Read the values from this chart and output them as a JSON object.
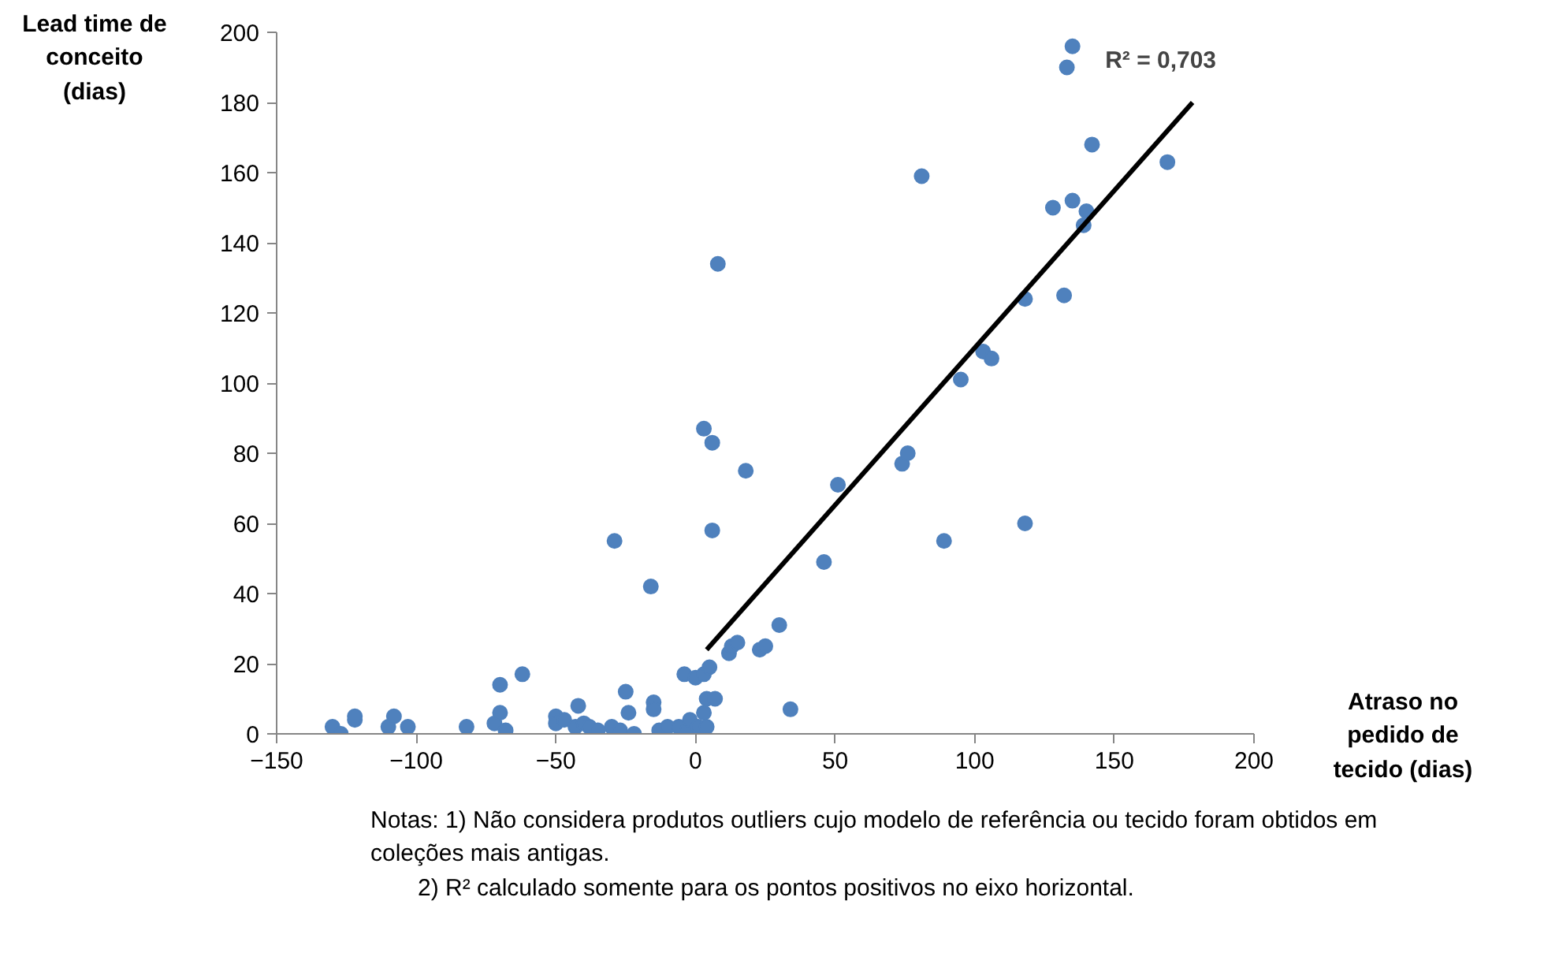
{
  "chart_data": {
    "type": "scatter",
    "xlabel": "Atraso no pedido de tecido (dias)",
    "ylabel": "Lead time de conceito (dias)",
    "xlim": [
      -150,
      200
    ],
    "xticks": [
      -150,
      -100,
      -50,
      0,
      50,
      100,
      150,
      200
    ],
    "ylim": [
      0,
      200
    ],
    "yticks": [
      0,
      20,
      40,
      60,
      80,
      100,
      120,
      140,
      160,
      180,
      200
    ],
    "grid": false,
    "series": [
      {
        "color": "#4f81bd",
        "marker": "circle",
        "x": [
          -130,
          -127,
          -122,
          -122,
          -110,
          -108,
          -103,
          -82,
          -72,
          -70,
          -70,
          -68,
          -62,
          -50,
          -50,
          -47,
          -43,
          -42,
          -40,
          -38,
          -35,
          -30,
          -29,
          -27,
          -25,
          -24,
          -22,
          -16,
          -15,
          -15,
          -13,
          -10,
          -6,
          -4,
          -3,
          -2,
          0,
          1,
          3,
          3,
          3,
          4,
          4,
          5,
          6,
          6,
          7,
          8,
          12,
          13,
          15,
          18,
          23,
          25,
          30,
          34,
          46,
          51,
          74,
          76,
          81,
          89,
          95,
          103,
          106,
          118,
          118,
          128,
          132,
          133,
          135,
          135,
          139,
          140,
          142,
          169
        ],
        "values": [
          2,
          0,
          4,
          5,
          2,
          5,
          2,
          2,
          3,
          6,
          14,
          1,
          17,
          5,
          3,
          4,
          2,
          8,
          3,
          2,
          1,
          2,
          55,
          1,
          12,
          6,
          0,
          42,
          9,
          7,
          1,
          2,
          2,
          17,
          1,
          4,
          16,
          2,
          17,
          87,
          6,
          10,
          2,
          19,
          58,
          83,
          10,
          134,
          23,
          25,
          26,
          75,
          24,
          25,
          31,
          7,
          49,
          71,
          77,
          80,
          159,
          55,
          101,
          109,
          107,
          124,
          60,
          150,
          125,
          190,
          196,
          152,
          145,
          149,
          168,
          163
        ]
      },
      {
        "type": "line",
        "color": "#000000",
        "x": [
          4,
          178
        ],
        "values": [
          24,
          180
        ]
      }
    ],
    "annotations": [
      "R² = 0,703",
      "Notas: 1) Não considera produtos outliers cujo modelo de referência ou tecido foram obtidos em coleções mais antigas.",
      "2) R² calculado somente para os pontos positivos no eixo horizontal."
    ]
  }
}
